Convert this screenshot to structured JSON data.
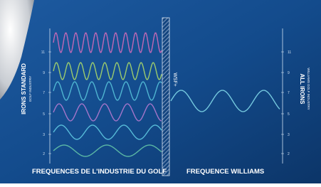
{
  "left_title": "IRONS STANDARD",
  "left_subtitle": "GOLF INDUSTRY",
  "right_title": "ALL IRONS",
  "right_subtitle": "WILLIAMS GOLF INDUSTRY",
  "divider_label": "WSF+",
  "left_caption": "FREQUENCES DE L'INDUSTRIE DU GOLF",
  "right_caption": "FREQUENCE WILLIAMS",
  "left_axis": {
    "ticks": [
      "2",
      "3",
      "5",
      "7",
      "9",
      "11"
    ]
  },
  "right_axis": {
    "ticks": [
      "2",
      "3",
      "5",
      "7",
      "9",
      "11"
    ]
  }
}
